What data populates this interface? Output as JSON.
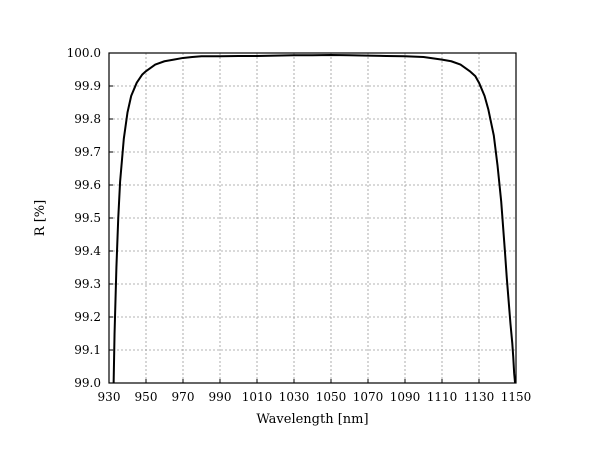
{
  "chart_data": {
    "type": "line",
    "title": "",
    "xlabel": "Wavelength [nm]",
    "ylabel": "R [%]",
    "xlim": [
      930,
      1150
    ],
    "ylim": [
      99.0,
      100.0
    ],
    "x_ticks": [
      930,
      950,
      970,
      990,
      1010,
      1030,
      1050,
      1070,
      1090,
      1110,
      1130,
      1150
    ],
    "y_ticks": [
      "99.0",
      "99.1",
      "99.2",
      "99.3",
      "99.4",
      "99.5",
      "99.6",
      "99.7",
      "99.8",
      "99.9",
      "100.0"
    ],
    "grid": true,
    "series": [
      {
        "color": "#000000",
        "x": [
          932.5,
          933,
          934,
          935,
          936,
          938,
          940,
          942,
          945,
          948,
          950,
          955,
          960,
          965,
          970,
          975,
          980,
          990,
          1000,
          1010,
          1020,
          1030,
          1040,
          1050,
          1060,
          1070,
          1080,
          1090,
          1100,
          1110,
          1115,
          1120,
          1125,
          1128,
          1130,
          1133,
          1135,
          1138,
          1140,
          1142,
          1144,
          1145,
          1146,
          1147,
          1148,
          1148.5,
          1149,
          1149.5
        ],
        "y": [
          99.0,
          99.15,
          99.35,
          99.5,
          99.61,
          99.74,
          99.82,
          99.87,
          99.91,
          99.935,
          99.945,
          99.965,
          99.975,
          99.98,
          99.985,
          99.988,
          99.99,
          99.99,
          99.991,
          99.991,
          99.992,
          99.993,
          99.993,
          99.994,
          99.993,
          99.992,
          99.991,
          99.99,
          99.988,
          99.98,
          99.975,
          99.965,
          99.945,
          99.93,
          99.91,
          99.87,
          99.83,
          99.75,
          99.66,
          99.55,
          99.4,
          99.32,
          99.25,
          99.18,
          99.12,
          99.08,
          99.03,
          99.0
        ]
      }
    ]
  }
}
